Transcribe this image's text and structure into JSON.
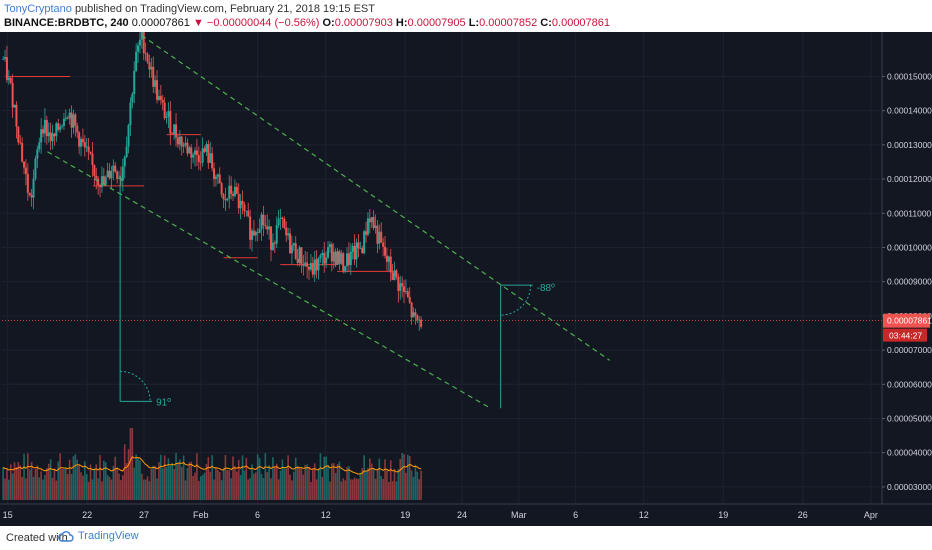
{
  "header": {
    "author": "TonyCryptano",
    "published_text": "published on TradingView.com, February 21, 2018 19:15 EST",
    "symbol": "BINANCE:BRDBTC, 240",
    "last_price": "0.00007861",
    "change_arrow": "▼",
    "change": "−0.00000044 (−0.56%)",
    "o_label": "O:",
    "o_value": "0.00007903",
    "h_label": "H:",
    "h_value": "0.00007905",
    "l_label": "L:",
    "l_value": "0.00007852",
    "c_label": "C:",
    "c_value": "0.00007861"
  },
  "footer": {
    "created_with": "Created with",
    "brand": "TradingView"
  },
  "colors": {
    "background": "#131722",
    "up_candle": "#26a69a",
    "down_candle": "#ef5350",
    "channel_line": "#4caf50",
    "price_line": "#ef5350",
    "price_badge": "#ef5350",
    "countdown_badge": "#c62828",
    "volume_ma": "#ff9800",
    "measure_line": "#26a69a"
  },
  "chart_data": {
    "type": "candlestick",
    "title": "BINANCE:BRDBTC, 240",
    "ylim": [
      2.5e-05,
      0.000163
    ],
    "y_ticks": [
      "0.00015000",
      "0.00014000",
      "0.00013000",
      "0.00012000",
      "0.00011000",
      "0.00010000",
      "0.00009000",
      "0.00008000",
      "0.00007000",
      "0.00006000",
      "0.00005000",
      "0.00004000",
      "0.00003000"
    ],
    "y_tick_values": [
      0.00015,
      0.00014,
      0.00013,
      0.00012,
      0.00011,
      0.0001,
      9e-05,
      8e-05,
      7e-05,
      6e-05,
      5e-05,
      4e-05,
      3e-05
    ],
    "x_ticks": [
      "15",
      "22",
      "27",
      "Feb",
      "6",
      "12",
      "19",
      "24",
      "Mar",
      "6",
      "12",
      "19",
      "26",
      "Apr"
    ],
    "x_tick_days": [
      15,
      22,
      27,
      32,
      37,
      43,
      50,
      55,
      60,
      65,
      71,
      78,
      85,
      91
    ],
    "x_range_days": [
      14.5,
      91.8
    ],
    "current_price": "0.00007861",
    "current_price_value": 7.861e-05,
    "countdown": "03:44:27",
    "price_path": [
      {
        "day": 14.6,
        "price": 0.000155
      },
      {
        "day": 15.5,
        "price": 0.000143
      },
      {
        "day": 16.3,
        "price": 0.000126
      },
      {
        "day": 17.0,
        "price": 0.000113
      },
      {
        "day": 18.0,
        "price": 0.000137
      },
      {
        "day": 19.0,
        "price": 0.000131
      },
      {
        "day": 20.2,
        "price": 0.000141
      },
      {
        "day": 21.3,
        "price": 0.000132
      },
      {
        "day": 22.5,
        "price": 0.000123
      },
      {
        "day": 23.5,
        "price": 0.000118
      },
      {
        "day": 24.2,
        "price": 0.000124
      },
      {
        "day": 25.0,
        "price": 0.000121
      },
      {
        "day": 25.6,
        "price": 0.000135
      },
      {
        "day": 26.2,
        "price": 0.000154
      },
      {
        "day": 26.8,
        "price": 0.000162
      },
      {
        "day": 27.5,
        "price": 0.000153
      },
      {
        "day": 28.4,
        "price": 0.000142
      },
      {
        "day": 29.5,
        "price": 0.000135
      },
      {
        "day": 30.5,
        "price": 0.00013
      },
      {
        "day": 31.5,
        "price": 0.000127
      },
      {
        "day": 32.5,
        "price": 0.000128
      },
      {
        "day": 33.3,
        "price": 0.000121
      },
      {
        "day": 34.0,
        "price": 0.000113
      },
      {
        "day": 34.8,
        "price": 0.000117
      },
      {
        "day": 35.6,
        "price": 0.000111
      },
      {
        "day": 36.5,
        "price": 0.000104
      },
      {
        "day": 37.3,
        "price": 0.000109
      },
      {
        "day": 38.2,
        "price": 0.000102
      },
      {
        "day": 39.0,
        "price": 0.000107
      },
      {
        "day": 39.8,
        "price": 0.000101
      },
      {
        "day": 40.8,
        "price": 9.7e-05
      },
      {
        "day": 41.7,
        "price": 9.3e-05
      },
      {
        "day": 42.5,
        "price": 9.6e-05
      },
      {
        "day": 43.5,
        "price": 9.9e-05
      },
      {
        "day": 44.5,
        "price": 9.5e-05
      },
      {
        "day": 45.5,
        "price": 9.8e-05
      },
      {
        "day": 46.3,
        "price": 0.000101
      },
      {
        "day": 46.8,
        "price": 0.00011
      },
      {
        "day": 47.4,
        "price": 0.000105
      },
      {
        "day": 48.0,
        "price": 9.9e-05
      },
      {
        "day": 48.8,
        "price": 9.3e-05
      },
      {
        "day": 49.5,
        "price": 8.9e-05
      },
      {
        "day": 50.2,
        "price": 8.5e-05
      },
      {
        "day": 50.8,
        "price": 7.8e-05
      },
      {
        "day": 51.4,
        "price": 7.86e-05
      }
    ],
    "horizontal_levels": [
      {
        "from_day": 14.8,
        "to_day": 20.5,
        "price": 0.00015
      },
      {
        "from_day": 22.5,
        "to_day": 27.0,
        "price": 0.000118
      },
      {
        "from_day": 29.0,
        "to_day": 32.0,
        "price": 0.000133
      },
      {
        "from_day": 34.0,
        "to_day": 37.0,
        "price": 9.7e-05
      },
      {
        "from_day": 39.0,
        "to_day": 44.0,
        "price": 9.5e-05
      },
      {
        "from_day": 44.0,
        "to_day": 49.0,
        "price": 9.3e-05
      }
    ],
    "channel_upper": [
      {
        "day": 26.8,
        "price": 0.000162
      },
      {
        "day": 68.0,
        "price": 6.7e-05
      }
    ],
    "channel_lower": [
      {
        "day": 18.5,
        "price": 0.000128
      },
      {
        "day": 57.5,
        "price": 5.3e-05
      }
    ],
    "measures": [
      {
        "x_day": 24.9,
        "from_price": 0.000121,
        "to_price": 5.5e-05,
        "label": "91º",
        "label_side": "right-bottom"
      },
      {
        "x_day": 58.4,
        "from_price": 8.9e-05,
        "to_price": 5.3e-05,
        "label": "-88º",
        "label_side": "right-top"
      }
    ],
    "volume": {
      "min_day": 14.6,
      "max_day": 51.4,
      "bars": 221,
      "seed": 7,
      "spike_day": 25.9
    }
  }
}
